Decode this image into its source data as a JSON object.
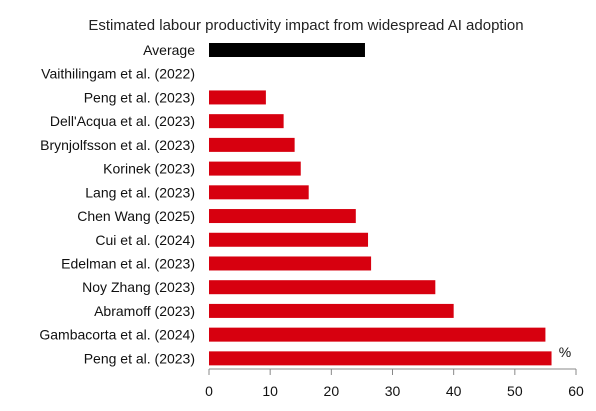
{
  "chart_data": {
    "type": "bar",
    "orientation": "horizontal",
    "title": "Estimated labour productivity impact from widespread AI adoption",
    "unit": "%",
    "categories": [
      "Average",
      "Vaithilingam et al. (2022)",
      "Peng et al. (2023)",
      "Dell'Acqua et al. (2023)",
      "Brynjolfsson et al. (2023)",
      "Korinek (2023)",
      "Lang et al. (2023)",
      "Chen Wang (2025)",
      "Cui et al. (2024)",
      "Edelman et al. (2023)",
      "Noy Zhang (2023)",
      "Abramoff (2023)",
      "Gambacorta et al. (2024)",
      "Peng et al. (2023)"
    ],
    "values": [
      25.5,
      0,
      9.3,
      12.2,
      14.0,
      15.0,
      16.3,
      24.0,
      26.0,
      26.5,
      37.0,
      40.0,
      55.0,
      56.0
    ],
    "colors": [
      "#000000",
      "#d7000f",
      "#d7000f",
      "#d7000f",
      "#d7000f",
      "#d7000f",
      "#d7000f",
      "#d7000f",
      "#d7000f",
      "#d7000f",
      "#d7000f",
      "#d7000f",
      "#d7000f",
      "#d7000f"
    ],
    "x_ticks": [
      0,
      10,
      20,
      30,
      40,
      50,
      60
    ],
    "xlim": [
      0,
      60
    ],
    "grid": false,
    "legend": "none"
  }
}
